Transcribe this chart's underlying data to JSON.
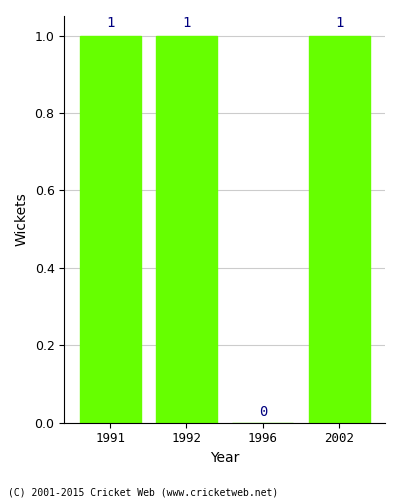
{
  "years": [
    "1991",
    "1992",
    "1996",
    "2002"
  ],
  "values": [
    1,
    1,
    0,
    1
  ],
  "bar_color": "#66ff00",
  "bar_width": 0.8,
  "label_color": "#000080",
  "ylabel": "Wickets",
  "xlabel": "Year",
  "ylim_max": 1.05,
  "yticks": [
    0.0,
    0.2,
    0.4,
    0.6,
    0.8,
    1.0
  ],
  "grid_color": "#cccccc",
  "background_color": "#ffffff",
  "footer_text": "(C) 2001-2015 Cricket Web (www.cricketweb.net)",
  "label_fontsize": 10,
  "tick_fontsize": 9,
  "footer_fontsize": 7
}
